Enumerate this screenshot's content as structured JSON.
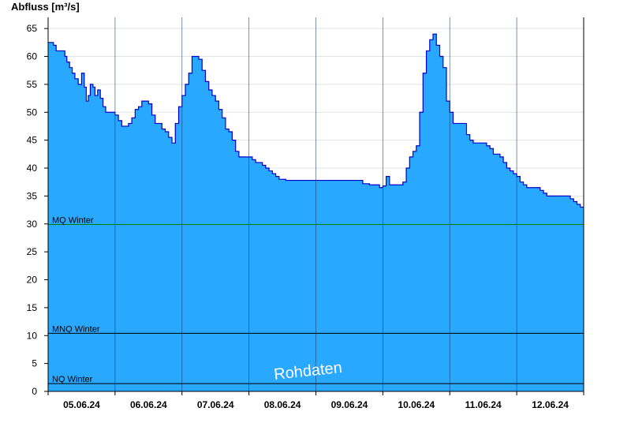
{
  "chart_data": {
    "type": "area",
    "ylabel": "Abfluss [m³/s]",
    "title": "",
    "xlabel": "",
    "ylim": [
      0,
      67
    ],
    "yticks": [
      0,
      5,
      10,
      15,
      20,
      25,
      30,
      35,
      40,
      45,
      50,
      55,
      60,
      65
    ],
    "xlim": [
      0,
      8
    ],
    "xticks": [
      "05.06.24",
      "06.06.24",
      "07.06.24",
      "08.06.24",
      "09.06.24",
      "10.06.24",
      "11.06.24",
      "12.06.24"
    ],
    "day_boundaries": [
      1,
      2,
      3,
      4,
      5,
      6,
      7
    ],
    "grid": "horizontal",
    "area_color": "#29a8ff",
    "line_color": "#0000cc",
    "series": [
      {
        "x": [
          0.0,
          0.03,
          0.08,
          0.12,
          0.15,
          0.2,
          0.25,
          0.28,
          0.32,
          0.36,
          0.4,
          0.45,
          0.5,
          0.54,
          0.57,
          0.6,
          0.63,
          0.67,
          0.7,
          0.74,
          0.78,
          0.82,
          0.86,
          0.9,
          0.94,
          0.98,
          1.0,
          1.05,
          1.1,
          1.15,
          1.2,
          1.25,
          1.3,
          1.35,
          1.4,
          1.45,
          1.5,
          1.55,
          1.6,
          1.65,
          1.7,
          1.75,
          1.8,
          1.85,
          1.9,
          1.95,
          2.0,
          2.05,
          2.1,
          2.15,
          2.2,
          2.25,
          2.3,
          2.35,
          2.4,
          2.45,
          2.5,
          2.55,
          2.6,
          2.65,
          2.7,
          2.75,
          2.8,
          2.85,
          2.9,
          2.95,
          3.0,
          3.05,
          3.1,
          3.15,
          3.2,
          3.25,
          3.3,
          3.35,
          3.4,
          3.45,
          3.5,
          3.55,
          3.6,
          3.7,
          3.8,
          3.9,
          4.0,
          4.2,
          4.4,
          4.6,
          4.7,
          4.8,
          4.9,
          4.95,
          5.0,
          5.05,
          5.1,
          5.15,
          5.2,
          5.25,
          5.3,
          5.35,
          5.4,
          5.45,
          5.5,
          5.55,
          5.6,
          5.65,
          5.7,
          5.75,
          5.8,
          5.85,
          5.9,
          5.95,
          6.0,
          6.05,
          6.1,
          6.15,
          6.2,
          6.25,
          6.3,
          6.35,
          6.4,
          6.45,
          6.5,
          6.55,
          6.6,
          6.65,
          6.7,
          6.75,
          6.8,
          6.85,
          6.9,
          6.95,
          7.0,
          7.05,
          7.1,
          7.15,
          7.2,
          7.25,
          7.3,
          7.35,
          7.4,
          7.45,
          7.5,
          7.55,
          7.6,
          7.65,
          7.7,
          7.75,
          7.8,
          7.85,
          7.9,
          7.95,
          8.0
        ],
        "values": [
          62.5,
          62.5,
          62.0,
          61.0,
          61.0,
          61.0,
          60.0,
          59.0,
          58.0,
          57.0,
          56.0,
          55.0,
          57.0,
          54.5,
          52.0,
          53.0,
          55.0,
          54.5,
          53.0,
          54.0,
          52.5,
          51.0,
          50.0,
          50.0,
          50.0,
          50.0,
          49.5,
          48.5,
          47.5,
          47.5,
          48.0,
          49.0,
          50.5,
          51.0,
          52.0,
          52.0,
          51.5,
          49.5,
          48.0,
          48.0,
          47.0,
          46.5,
          45.5,
          44.5,
          48.0,
          51.0,
          53.0,
          55.0,
          57.0,
          60.0,
          60.0,
          59.5,
          57.5,
          55.5,
          54.0,
          53.0,
          52.0,
          50.5,
          49.0,
          47.0,
          46.5,
          45.0,
          43.0,
          42.0,
          42.0,
          42.0,
          42.0,
          41.5,
          41.0,
          41.0,
          40.5,
          40.0,
          39.5,
          39.0,
          38.5,
          38.0,
          38.0,
          37.8,
          37.8,
          37.8,
          37.8,
          37.8,
          37.8,
          37.8,
          37.8,
          37.8,
          37.2,
          37.0,
          37.0,
          36.5,
          36.8,
          38.5,
          37.0,
          37.0,
          37.0,
          37.0,
          37.5,
          40.0,
          42.0,
          43.0,
          44.0,
          50.0,
          57.0,
          61.0,
          63.0,
          64.0,
          62.0,
          60.0,
          58.0,
          52.0,
          50.0,
          48.0,
          48.0,
          48.0,
          48.0,
          46.0,
          45.0,
          44.5,
          44.5,
          44.5,
          44.5,
          44.0,
          43.5,
          42.5,
          42.5,
          42.0,
          41.0,
          40.0,
          39.5,
          39.0,
          38.5,
          37.5,
          37.0,
          36.5,
          36.5,
          36.5,
          36.5,
          36.0,
          35.5,
          35.0,
          35.0,
          35.0,
          35.0,
          35.0,
          35.0,
          35.0,
          34.5,
          34.0,
          33.5,
          33.0,
          33.0
        ]
      }
    ],
    "reference_lines": [
      {
        "label": "MQ Winter",
        "value": 29.9,
        "color": "#008000"
      },
      {
        "label": "MNQ Winter",
        "value": 10.4,
        "color": "#000000"
      },
      {
        "label": "NQ Winter",
        "value": 1.4,
        "color": "#000000"
      }
    ],
    "watermark": "Rohdaten"
  }
}
